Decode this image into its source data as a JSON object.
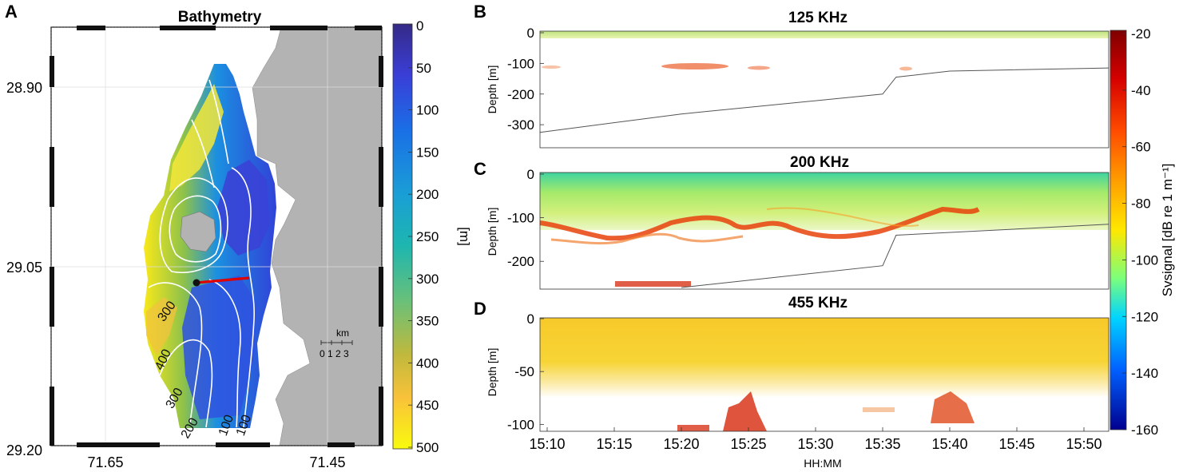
{
  "panels": {
    "A": {
      "letter": "A",
      "title": "Bathymetry",
      "lat_ticks": [
        "28.90",
        "29.05",
        "29.20"
      ],
      "lon_ticks": [
        "71.65",
        "71.45"
      ],
      "colorbar_ticks": [
        "0",
        "50",
        "100",
        "150",
        "200",
        "250",
        "300",
        "350",
        "400",
        "450",
        "500"
      ],
      "colorbar_unit": "[m]",
      "contour_labels": [
        "300",
        "400",
        "300",
        "200",
        "100",
        "100"
      ],
      "scalebar": {
        "unit": "km",
        "ticks": "0 1 2 3"
      }
    },
    "B": {
      "letter": "B",
      "title": "125 KHz",
      "ylabel": "Depth [m]",
      "yticks": [
        "0",
        "-100",
        "-200",
        "-300"
      ]
    },
    "C": {
      "letter": "C",
      "title": "200 KHz",
      "ylabel": "Depth [m]",
      "yticks": [
        "0",
        "-100",
        "-200"
      ]
    },
    "D": {
      "letter": "D",
      "title": "455 KHz",
      "ylabel": "Depth [m]",
      "yticks": [
        "0",
        "-50",
        "-100"
      ]
    },
    "time_axis": {
      "label": "HH:MM",
      "ticks": [
        "15:10",
        "15:15",
        "15:20",
        "15:25",
        "15:30",
        "15:35",
        "15:40",
        "15:45",
        "15:50"
      ]
    },
    "sv_colorbar": {
      "label": "Svsignal [dB re 1 m⁻¹]",
      "ticks": [
        "-20",
        "-40",
        "-60",
        "-80",
        "-100",
        "-120",
        "-140",
        "-160"
      ]
    }
  },
  "chart_data": [
    {
      "type": "heatmap",
      "title": "Bathymetry",
      "panel": "A",
      "xlabel": "",
      "ylabel": "",
      "lon_ticks": [
        71.65,
        71.45
      ],
      "lat_ticks": [
        28.9,
        29.05,
        29.2
      ],
      "color_range": [
        0,
        500
      ],
      "color_unit": "m",
      "colormap": "parula (deep = yellow, shallow = blue)",
      "contour_levels": [
        100,
        200,
        300,
        400
      ],
      "land_color": "#b3b3b3",
      "transect_color": "#e00000"
    },
    {
      "type": "heatmap",
      "title": "125 KHz",
      "panel": "B",
      "xlabel": "HH:MM",
      "ylabel": "Depth [m]",
      "ylim": [
        -370,
        0
      ],
      "x_ticks": [
        "15:10",
        "15:15",
        "15:20",
        "15:25",
        "15:30",
        "15:35",
        "15:40",
        "15:45",
        "15:50"
      ],
      "seafloor": {
        "time": [
          "15:09",
          "15:20",
          "15:35",
          "15:36",
          "15:40",
          "15:52"
        ],
        "depth": [
          -325,
          -265,
          -200,
          -145,
          -125,
          -115
        ]
      }
    },
    {
      "type": "heatmap",
      "title": "200 KHz",
      "panel": "C",
      "xlabel": "HH:MM",
      "ylabel": "Depth [m]",
      "ylim": [
        -260,
        0
      ],
      "x_ticks": [
        "15:10",
        "15:15",
        "15:20",
        "15:25",
        "15:30",
        "15:35",
        "15:40",
        "15:45",
        "15:50"
      ],
      "scattering_layer_depth": {
        "time": [
          "15:09",
          "15:15",
          "15:20",
          "15:25",
          "15:30",
          "15:35",
          "15:40"
        ],
        "depth": [
          -115,
          -140,
          -130,
          -100,
          -140,
          -135,
          -95
        ]
      },
      "seafloor": {
        "time": [
          "15:20",
          "15:35",
          "15:36",
          "15:52"
        ],
        "depth": [
          -260,
          -210,
          -140,
          -115
        ]
      }
    },
    {
      "type": "heatmap",
      "title": "455 KHz",
      "panel": "D",
      "xlabel": "HH:MM",
      "ylabel": "Depth [m]",
      "ylim": [
        -105,
        0
      ],
      "x_ticks": [
        "15:10",
        "15:15",
        "15:20",
        "15:25",
        "15:30",
        "15:35",
        "15:40",
        "15:45",
        "15:50"
      ]
    }
  ],
  "colors": {
    "land": "#b3b3b3",
    "transect": "#e00000",
    "scattering_layer": "#e8420c"
  }
}
